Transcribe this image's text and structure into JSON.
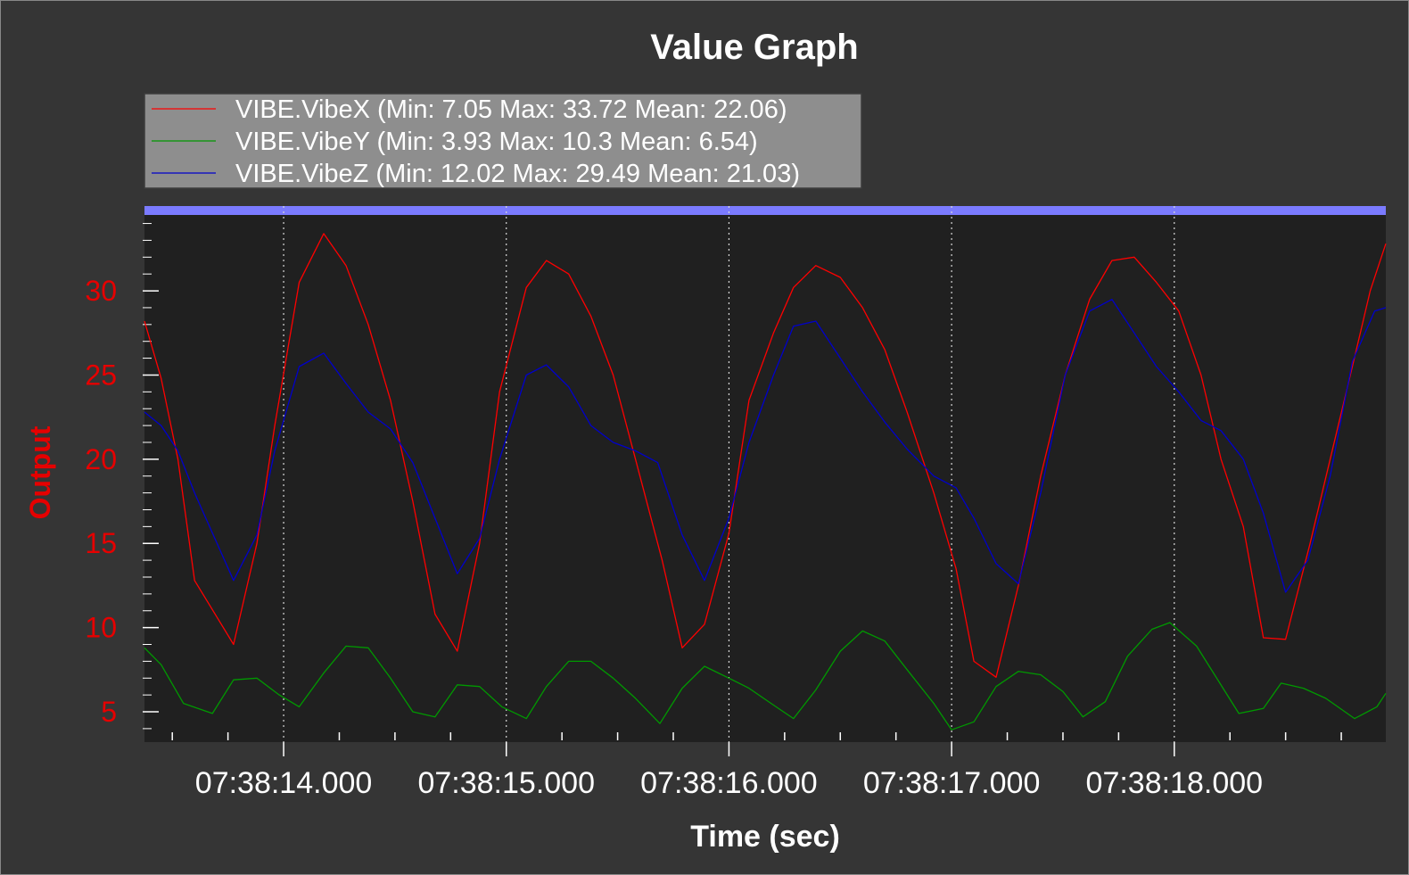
{
  "chart_data": {
    "type": "line",
    "title": "Value Graph",
    "xlabel": "Time (sec)",
    "ylabel": "Output",
    "x_unit": "seconds",
    "x_tick_labels": [
      "07:38:14.000",
      "07:38:15.000",
      "07:38:16.000",
      "07:38:17.000",
      "07:38:18.000"
    ],
    "x_tick_values": [
      14.0,
      15.0,
      16.0,
      17.0,
      18.0
    ],
    "xlim": [
      13.375,
      18.95
    ],
    "ylim": [
      3.2,
      34.4
    ],
    "y_ticks": [
      5,
      10,
      15,
      20,
      25,
      30
    ],
    "grid": "vertical dotted",
    "legend_position": "top-left",
    "colors": {
      "background": "#353535",
      "plot_area": "#202020",
      "top_band": "#7b7bff",
      "axis_label": "#e60000",
      "series": [
        "#ff0000",
        "#009900",
        "#0000cc"
      ]
    },
    "series": [
      {
        "name": "VIBE.VibeX (Min: 7.05 Max: 33.72 Mean: 22.06)",
        "color": "#ff0000",
        "points": [
          [
            13.375,
            28.2
          ],
          [
            13.45,
            24.8
          ],
          [
            13.525,
            20.0
          ],
          [
            13.6,
            12.8
          ],
          [
            13.775,
            9.0
          ],
          [
            13.88,
            15.0
          ],
          [
            13.96,
            22.0
          ],
          [
            14.07,
            30.5
          ],
          [
            14.18,
            33.4
          ],
          [
            14.28,
            31.5
          ],
          [
            14.38,
            28.0
          ],
          [
            14.48,
            23.5
          ],
          [
            14.58,
            17.5
          ],
          [
            14.68,
            10.8
          ],
          [
            14.78,
            8.6
          ],
          [
            14.88,
            15.0
          ],
          [
            14.97,
            24.0
          ],
          [
            15.09,
            30.2
          ],
          [
            15.18,
            31.8
          ],
          [
            15.28,
            31.0
          ],
          [
            15.38,
            28.5
          ],
          [
            15.48,
            25.0
          ],
          [
            15.58,
            20.0
          ],
          [
            15.7,
            14.0
          ],
          [
            15.79,
            8.8
          ],
          [
            15.89,
            10.2
          ],
          [
            16.0,
            15.6
          ],
          [
            16.09,
            23.5
          ],
          [
            16.2,
            27.5
          ],
          [
            16.29,
            30.2
          ],
          [
            16.39,
            31.5
          ],
          [
            16.5,
            30.8
          ],
          [
            16.6,
            29.0
          ],
          [
            16.7,
            26.5
          ],
          [
            16.8,
            22.8
          ],
          [
            16.92,
            18.0
          ],
          [
            17.02,
            13.5
          ],
          [
            17.1,
            8.0
          ],
          [
            17.2,
            7.05
          ],
          [
            17.3,
            12.5
          ],
          [
            17.4,
            19.0
          ],
          [
            17.51,
            25.0
          ],
          [
            17.62,
            29.5
          ],
          [
            17.72,
            31.8
          ],
          [
            17.82,
            32.0
          ],
          [
            17.92,
            30.5
          ],
          [
            18.02,
            28.8
          ],
          [
            18.12,
            25.0
          ],
          [
            18.21,
            20.0
          ],
          [
            18.31,
            16.0
          ],
          [
            18.4,
            9.4
          ],
          [
            18.5,
            9.3
          ],
          [
            18.61,
            15.0
          ],
          [
            18.7,
            20.0
          ],
          [
            18.8,
            25.5
          ],
          [
            18.88,
            30.0
          ],
          [
            18.95,
            32.8
          ]
        ]
      },
      {
        "name": "VIBE.VibeY (Min: 3.93 Max: 10.3 Mean: 6.54)",
        "color": "#009900",
        "points": [
          [
            13.375,
            8.8
          ],
          [
            13.45,
            7.8
          ],
          [
            13.55,
            5.5
          ],
          [
            13.68,
            4.9
          ],
          [
            13.775,
            6.9
          ],
          [
            13.88,
            7.0
          ],
          [
            13.98,
            6.0
          ],
          [
            14.07,
            5.3
          ],
          [
            14.18,
            7.3
          ],
          [
            14.28,
            8.9
          ],
          [
            14.38,
            8.8
          ],
          [
            14.48,
            7.0
          ],
          [
            14.58,
            5.0
          ],
          [
            14.68,
            4.7
          ],
          [
            14.78,
            6.6
          ],
          [
            14.88,
            6.5
          ],
          [
            14.98,
            5.3
          ],
          [
            15.09,
            4.6
          ],
          [
            15.18,
            6.5
          ],
          [
            15.28,
            8.0
          ],
          [
            15.38,
            8.0
          ],
          [
            15.48,
            7.0
          ],
          [
            15.58,
            5.8
          ],
          [
            15.69,
            4.3
          ],
          [
            15.79,
            6.4
          ],
          [
            15.89,
            7.7
          ],
          [
            16.0,
            7.0
          ],
          [
            16.09,
            6.4
          ],
          [
            16.2,
            5.4
          ],
          [
            16.29,
            4.6
          ],
          [
            16.39,
            6.3
          ],
          [
            16.5,
            8.6
          ],
          [
            16.6,
            9.8
          ],
          [
            16.7,
            9.2
          ],
          [
            16.8,
            7.5
          ],
          [
            16.92,
            5.5
          ],
          [
            17.0,
            3.93
          ],
          [
            17.1,
            4.4
          ],
          [
            17.2,
            6.5
          ],
          [
            17.3,
            7.4
          ],
          [
            17.4,
            7.2
          ],
          [
            17.5,
            6.2
          ],
          [
            17.59,
            4.7
          ],
          [
            17.69,
            5.6
          ],
          [
            17.79,
            8.3
          ],
          [
            17.9,
            9.9
          ],
          [
            17.98,
            10.3
          ],
          [
            18.1,
            8.9
          ],
          [
            18.2,
            6.8
          ],
          [
            18.29,
            4.9
          ],
          [
            18.4,
            5.2
          ],
          [
            18.48,
            6.7
          ],
          [
            18.58,
            6.4
          ],
          [
            18.68,
            5.8
          ],
          [
            18.81,
            4.6
          ],
          [
            18.91,
            5.3
          ],
          [
            18.95,
            6.1
          ]
        ]
      },
      {
        "name": "VIBE.VibeZ (Min: 12.02 Max: 29.49 Mean: 21.03)",
        "color": "#0000cc",
        "points": [
          [
            13.375,
            22.8
          ],
          [
            13.45,
            22.0
          ],
          [
            13.525,
            20.5
          ],
          [
            13.6,
            18.0
          ],
          [
            13.775,
            12.8
          ],
          [
            13.88,
            15.5
          ],
          [
            13.96,
            20.5
          ],
          [
            14.07,
            25.5
          ],
          [
            14.18,
            26.3
          ],
          [
            14.28,
            24.5
          ],
          [
            14.38,
            22.8
          ],
          [
            14.48,
            21.8
          ],
          [
            14.58,
            19.8
          ],
          [
            14.68,
            16.5
          ],
          [
            14.78,
            13.2
          ],
          [
            14.88,
            15.3
          ],
          [
            14.97,
            20.0
          ],
          [
            15.09,
            25.0
          ],
          [
            15.18,
            25.6
          ],
          [
            15.28,
            24.3
          ],
          [
            15.38,
            22.0
          ],
          [
            15.48,
            21.0
          ],
          [
            15.58,
            20.5
          ],
          [
            15.68,
            19.8
          ],
          [
            15.79,
            15.5
          ],
          [
            15.89,
            12.8
          ],
          [
            16.0,
            16.5
          ],
          [
            16.09,
            21.0
          ],
          [
            16.2,
            25.0
          ],
          [
            16.29,
            27.9
          ],
          [
            16.39,
            28.2
          ],
          [
            16.5,
            26.0
          ],
          [
            16.6,
            24.0
          ],
          [
            16.7,
            22.2
          ],
          [
            16.8,
            20.6
          ],
          [
            16.92,
            19.0
          ],
          [
            17.02,
            18.3
          ],
          [
            17.1,
            16.5
          ],
          [
            17.2,
            13.8
          ],
          [
            17.3,
            12.6
          ],
          [
            17.4,
            18.0
          ],
          [
            17.51,
            25.0
          ],
          [
            17.62,
            28.8
          ],
          [
            17.72,
            29.49
          ],
          [
            17.82,
            27.5
          ],
          [
            17.92,
            25.5
          ],
          [
            18.02,
            24.0
          ],
          [
            18.12,
            22.3
          ],
          [
            18.21,
            21.7
          ],
          [
            18.31,
            20.0
          ],
          [
            18.4,
            16.8
          ],
          [
            18.5,
            12.1
          ],
          [
            18.6,
            14.0
          ],
          [
            18.7,
            19.0
          ],
          [
            18.8,
            25.8
          ],
          [
            18.9,
            28.8
          ],
          [
            18.95,
            29.0
          ]
        ]
      }
    ]
  }
}
